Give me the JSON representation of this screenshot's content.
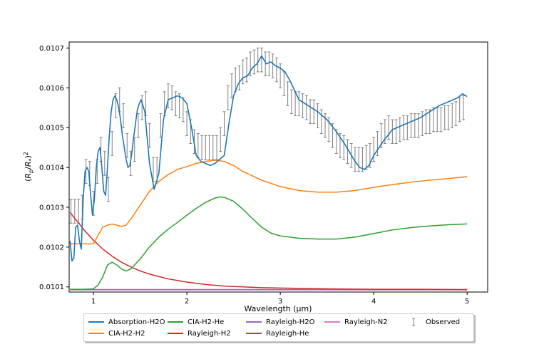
{
  "chart_data": {
    "type": "line",
    "xlabel": "Wavelength (μm)",
    "ylabel": "(R_p/R_*)^2",
    "xlim": [
      0.74,
      5.22
    ],
    "ylim": [
      0.010087,
      0.010715
    ],
    "x_ticks": [
      1,
      2,
      3,
      4,
      5
    ],
    "y_ticks": [
      0.0101,
      0.0102,
      0.0103,
      0.0104,
      0.0105,
      0.0106,
      0.0107
    ],
    "grid": false,
    "legend_placement": "bottom-center",
    "series": [
      {
        "name": "Absorption-H2O",
        "color": "#1f77b4",
        "x": [
          0.75,
          0.77,
          0.79,
          0.81,
          0.83,
          0.85,
          0.87,
          0.89,
          0.91,
          0.93,
          0.95,
          0.97,
          0.99,
          1.01,
          1.03,
          1.05,
          1.07,
          1.09,
          1.11,
          1.13,
          1.15,
          1.17,
          1.19,
          1.21,
          1.23,
          1.25,
          1.27,
          1.29,
          1.31,
          1.33,
          1.35,
          1.37,
          1.39,
          1.41,
          1.43,
          1.45,
          1.47,
          1.49,
          1.51,
          1.55,
          1.6,
          1.65,
          1.7,
          1.75,
          1.8,
          1.85,
          1.9,
          1.95,
          2.0,
          2.05,
          2.1,
          2.15,
          2.2,
          2.25,
          2.3,
          2.35,
          2.4,
          2.45,
          2.5,
          2.55,
          2.6,
          2.65,
          2.7,
          2.75,
          2.8,
          2.85,
          2.9,
          2.95,
          3.0,
          3.05,
          3.1,
          3.2,
          3.3,
          3.4,
          3.5,
          3.6,
          3.7,
          3.8,
          3.85,
          3.9,
          3.95,
          4.0,
          4.1,
          4.2,
          4.3,
          4.4,
          4.5,
          4.6,
          4.7,
          4.8,
          4.9,
          4.95,
          5.0
        ],
        "y": [
          0.010215,
          0.010165,
          0.010172,
          0.01025,
          0.010255,
          0.010215,
          0.010195,
          0.01032,
          0.01039,
          0.0104,
          0.01039,
          0.01033,
          0.01028,
          0.01032,
          0.0104,
          0.01044,
          0.01045,
          0.0104,
          0.01034,
          0.01033,
          0.0104,
          0.01048,
          0.01054,
          0.01057,
          0.01058,
          0.01057,
          0.01055,
          0.01052,
          0.01048,
          0.01045,
          0.01042,
          0.0104,
          0.010405,
          0.010435,
          0.010475,
          0.01051,
          0.010545,
          0.01056,
          0.01057,
          0.01054,
          0.01041,
          0.010345,
          0.010385,
          0.01052,
          0.01057,
          0.010575,
          0.01058,
          0.010575,
          0.01056,
          0.0105,
          0.01043,
          0.010415,
          0.01041,
          0.010405,
          0.01041,
          0.01042,
          0.01043,
          0.01051,
          0.01058,
          0.01061,
          0.010625,
          0.01063,
          0.01065,
          0.01066,
          0.01068,
          0.01066,
          0.010665,
          0.010655,
          0.01065,
          0.01064,
          0.01062,
          0.01057,
          0.010555,
          0.01054,
          0.01052,
          0.01049,
          0.010455,
          0.010415,
          0.0104,
          0.010395,
          0.010405,
          0.01043,
          0.010465,
          0.010495,
          0.010505,
          0.010515,
          0.010525,
          0.01054,
          0.010555,
          0.010565,
          0.010575,
          0.010585,
          0.010578
        ]
      },
      {
        "name": "CIA-H2-H2",
        "color": "#ff7f0e",
        "x": [
          0.75,
          0.8,
          0.9,
          1.0,
          1.05,
          1.1,
          1.15,
          1.2,
          1.25,
          1.3,
          1.35,
          1.4,
          1.5,
          1.6,
          1.7,
          1.8,
          1.9,
          2.0,
          2.1,
          2.2,
          2.3,
          2.4,
          2.5,
          2.6,
          2.8,
          3.0,
          3.2,
          3.4,
          3.6,
          3.8,
          4.0,
          4.2,
          4.4,
          4.6,
          4.8,
          5.0
        ],
        "y": [
          0.010208,
          0.010208,
          0.010208,
          0.010208,
          0.01023,
          0.01025,
          0.010255,
          0.010258,
          0.010255,
          0.010252,
          0.010255,
          0.01027,
          0.010305,
          0.01034,
          0.010365,
          0.010382,
          0.010395,
          0.010402,
          0.01041,
          0.010415,
          0.010418,
          0.010415,
          0.010405,
          0.01039,
          0.010368,
          0.010352,
          0.010342,
          0.010338,
          0.010338,
          0.010342,
          0.01035,
          0.010357,
          0.010363,
          0.010368,
          0.010372,
          0.010377
        ]
      },
      {
        "name": "CIA-H2-He",
        "color": "#2ca02c",
        "x": [
          0.75,
          0.9,
          1.0,
          1.05,
          1.1,
          1.15,
          1.2,
          1.25,
          1.3,
          1.35,
          1.4,
          1.5,
          1.6,
          1.7,
          1.8,
          1.9,
          2.0,
          2.1,
          2.2,
          2.3,
          2.35,
          2.4,
          2.5,
          2.6,
          2.7,
          2.8,
          2.9,
          3.0,
          3.2,
          3.4,
          3.6,
          3.8,
          4.0,
          4.2,
          4.4,
          4.6,
          4.8,
          5.0
        ],
        "y": [
          0.010094,
          0.010094,
          0.010095,
          0.010105,
          0.010125,
          0.010155,
          0.010162,
          0.010155,
          0.010145,
          0.01014,
          0.010145,
          0.01017,
          0.0102,
          0.010225,
          0.010245,
          0.010262,
          0.01028,
          0.010297,
          0.010312,
          0.010323,
          0.010326,
          0.010325,
          0.010315,
          0.010295,
          0.010272,
          0.01025,
          0.010235,
          0.010228,
          0.010222,
          0.01022,
          0.01022,
          0.010225,
          0.010234,
          0.010243,
          0.010249,
          0.010253,
          0.010256,
          0.010258
        ]
      },
      {
        "name": "Rayleigh-H2",
        "color": "#d62728",
        "x": [
          0.75,
          0.8,
          0.85,
          0.9,
          0.95,
          1.0,
          1.1,
          1.2,
          1.3,
          1.4,
          1.5,
          1.6,
          1.8,
          2.0,
          2.2,
          2.4,
          2.6,
          2.8,
          3.0,
          3.5,
          4.0,
          4.5,
          5.0
        ],
        "y": [
          0.010287,
          0.010272,
          0.010258,
          0.010243,
          0.01023,
          0.010217,
          0.010195,
          0.010177,
          0.010162,
          0.01015,
          0.01014,
          0.010132,
          0.01012,
          0.010112,
          0.010106,
          0.010102,
          0.0101,
          0.010098,
          0.010097,
          0.010095,
          0.010094,
          0.010094,
          0.010093
        ]
      },
      {
        "name": "Rayleigh-H2O",
        "color": "#9467bd",
        "x": [
          0.75,
          1.5,
          2.5,
          3.5,
          5.0
        ],
        "y": [
          0.010093,
          0.010093,
          0.010093,
          0.010093,
          0.010093
        ]
      },
      {
        "name": "Rayleigh-He",
        "color": "#8c564b",
        "x": [
          0.75,
          1.5,
          2.5,
          3.5,
          5.0
        ],
        "y": [
          0.010093,
          0.010093,
          0.010093,
          0.010093,
          0.010093
        ]
      },
      {
        "name": "Rayleigh-N2",
        "color": "#e377c2",
        "x": [
          0.75,
          1.5,
          2.5,
          3.5,
          5.0
        ],
        "y": [
          0.0100925,
          0.0100925,
          0.0100925,
          0.0100925,
          0.0100925
        ]
      }
    ],
    "observed": {
      "name": "Observed",
      "color": "#7f7f7f",
      "x": [
        0.76,
        0.8,
        0.84,
        0.88,
        0.92,
        0.96,
        1.0,
        1.04,
        1.08,
        1.12,
        1.16,
        1.2,
        1.24,
        1.28,
        1.32,
        1.36,
        1.4,
        1.44,
        1.48,
        1.52,
        1.56,
        1.6,
        1.64,
        1.68,
        1.72,
        1.76,
        1.8,
        1.84,
        1.88,
        1.92,
        1.96,
        2.0,
        2.04,
        2.08,
        2.12,
        2.16,
        2.2,
        2.24,
        2.28,
        2.32,
        2.36,
        2.4,
        2.44,
        2.48,
        2.52,
        2.56,
        2.6,
        2.64,
        2.68,
        2.72,
        2.76,
        2.8,
        2.84,
        2.88,
        2.92,
        2.96,
        3.0,
        3.04,
        3.08,
        3.12,
        3.16,
        3.2,
        3.24,
        3.28,
        3.32,
        3.36,
        3.4,
        3.44,
        3.48,
        3.52,
        3.56,
        3.6,
        3.64,
        3.68,
        3.72,
        3.76,
        3.8,
        3.84,
        3.88,
        3.92,
        3.96,
        4.0,
        4.04,
        4.08,
        4.12,
        4.16,
        4.2,
        4.24,
        4.28,
        4.32,
        4.36,
        4.4,
        4.44,
        4.48,
        4.52,
        4.56,
        4.6,
        4.64,
        4.68,
        4.72,
        4.76,
        4.8,
        4.84,
        4.88,
        4.92,
        4.96
      ],
      "y": [
        0.01029,
        0.01029,
        0.01029,
        0.0103,
        0.01039,
        0.010385,
        0.01031,
        0.01039,
        0.010445,
        0.01041,
        0.010345,
        0.01046,
        0.010555,
        0.01057,
        0.01053,
        0.010455,
        0.01041,
        0.010445,
        0.010505,
        0.01055,
        0.01056,
        0.01048,
        0.010395,
        0.010395,
        0.010505,
        0.01056,
        0.01058,
        0.010575,
        0.01056,
        0.010555,
        0.010545,
        0.01051,
        0.01049,
        0.010465,
        0.010455,
        0.01045,
        0.01045,
        0.01045,
        0.01045,
        0.01045,
        0.01047,
        0.01051,
        0.010575,
        0.010605,
        0.01062,
        0.010625,
        0.01064,
        0.010645,
        0.01066,
        0.010665,
        0.01067,
        0.01067,
        0.01066,
        0.01066,
        0.010655,
        0.010645,
        0.01063,
        0.01061,
        0.010585,
        0.010565,
        0.01056,
        0.01056,
        0.010555,
        0.01055,
        0.01054,
        0.01054,
        0.01053,
        0.010515,
        0.010505,
        0.010495,
        0.01048,
        0.010465,
        0.010455,
        0.01045,
        0.01044,
        0.01043,
        0.01042,
        0.01042,
        0.01042,
        0.010425,
        0.01043,
        0.010445,
        0.01046,
        0.01048,
        0.01049,
        0.0105,
        0.01049,
        0.01049,
        0.010495,
        0.0105,
        0.0105,
        0.010505,
        0.010505,
        0.010505,
        0.01051,
        0.010515,
        0.010515,
        0.01052,
        0.01052,
        0.01052,
        0.010525,
        0.010525,
        0.01053,
        0.010535,
        0.010545,
        0.01055
      ],
      "yerr": 3e-05
    }
  }
}
